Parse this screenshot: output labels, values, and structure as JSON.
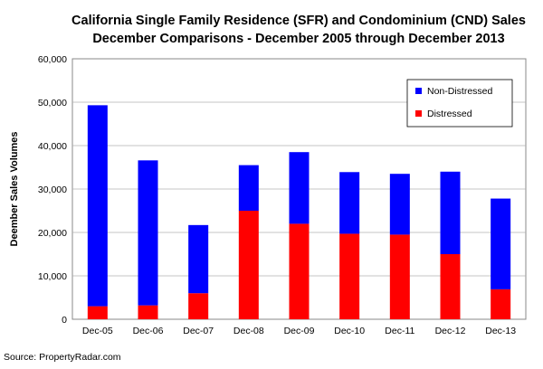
{
  "chart_data": {
    "type": "bar",
    "stacked": true,
    "title": "California Single Family Residence (SFR) and Condominium (CND) Sales",
    "subtitle": "December Comparisons - December 2005 through December 2013",
    "xlabel": "",
    "ylabel": "Deember Sales Volumes",
    "ylim": [
      0,
      60000
    ],
    "yticks": [
      0,
      10000,
      20000,
      30000,
      40000,
      50000,
      60000
    ],
    "ytick_labels": [
      "0",
      "10,000",
      "20,000",
      "30,000",
      "40,000",
      "50,000",
      "60,000"
    ],
    "categories": [
      "Dec-05",
      "Dec-06",
      "Dec-07",
      "Dec-08",
      "Dec-09",
      "Dec-10",
      "Dec-11",
      "Dec-12",
      "Dec-13"
    ],
    "series": [
      {
        "name": "Distressed",
        "color": "#ff0000",
        "values": [
          3000,
          3200,
          6000,
          25000,
          22000,
          19700,
          19500,
          15000,
          6900
        ]
      },
      {
        "name": "Non-Distressed",
        "color": "#0000ff",
        "values": [
          46300,
          33400,
          15700,
          10500,
          16500,
          14200,
          14000,
          19000,
          20900
        ]
      }
    ],
    "legend_order": [
      "Non-Distressed",
      "Distressed"
    ],
    "legend_position": "top-right",
    "grid": true
  },
  "source": "Source: PropertyRadar.com"
}
